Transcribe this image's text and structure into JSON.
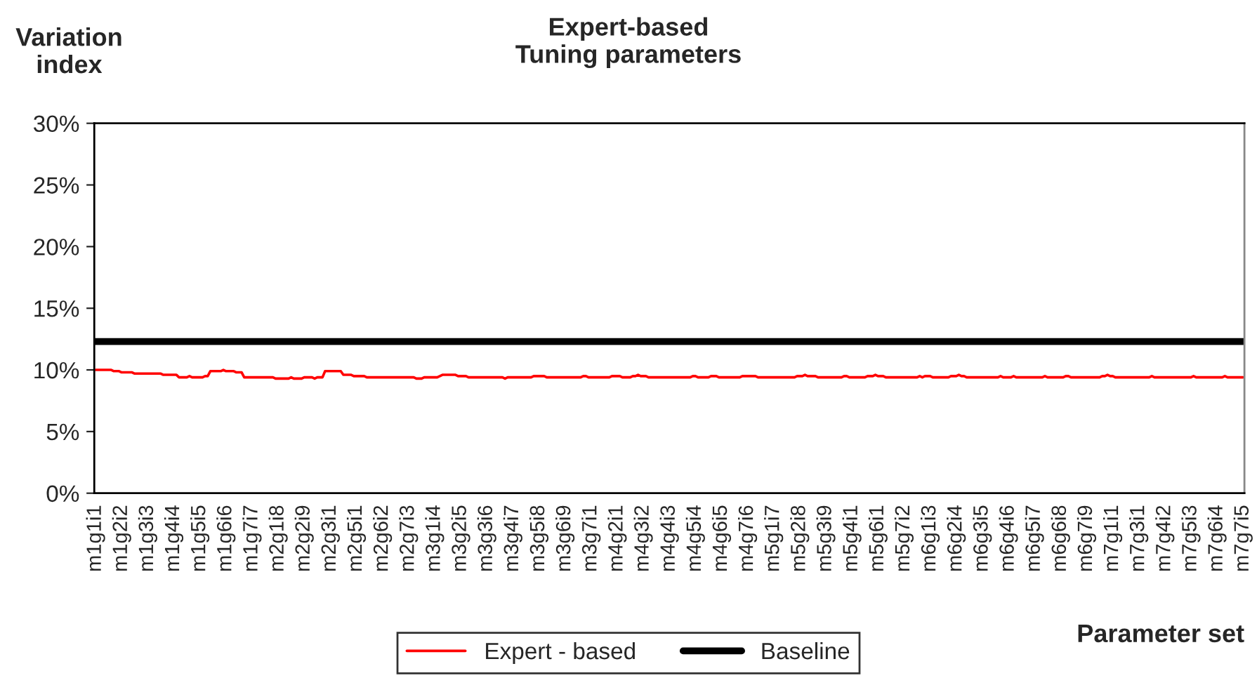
{
  "chart_data": {
    "type": "line",
    "title": "Expert-based\nTuning parameters",
    "xlabel": "Parameter set",
    "ylabel": "Variation index",
    "categories": [
      "m1g1i1",
      null,
      null,
      null,
      null,
      null,
      null,
      null,
      null,
      null,
      "m1g2i2",
      null,
      null,
      null,
      null,
      null,
      null,
      null,
      null,
      null,
      "m1g3i3",
      null,
      null,
      null,
      null,
      null,
      null,
      null,
      null,
      null,
      "m1g4i4",
      null,
      null,
      null,
      null,
      null,
      null,
      null,
      null,
      null,
      "m1g5i5",
      null,
      null,
      null,
      null,
      null,
      null,
      null,
      null,
      null,
      "m1g6i6",
      null,
      null,
      null,
      null,
      null,
      null,
      null,
      null,
      null,
      "m1g7i7",
      null,
      null,
      null,
      null,
      null,
      null,
      null,
      null,
      null,
      "m2g1i8",
      null,
      null,
      null,
      null,
      null,
      null,
      null,
      null,
      null,
      "m2g2i9",
      null,
      null,
      null,
      null,
      null,
      null,
      null,
      null,
      null,
      "m2g3i1",
      null,
      null,
      null,
      null,
      null,
      null,
      null,
      null,
      null,
      "m2g5i1",
      null,
      null,
      null,
      null,
      null,
      null,
      null,
      null,
      null,
      "m2g6i2",
      null,
      null,
      null,
      null,
      null,
      null,
      null,
      null,
      null,
      "m2g7i3",
      null,
      null,
      null,
      null,
      null,
      null,
      null,
      null,
      null,
      "m3g1i4",
      null,
      null,
      null,
      null,
      null,
      null,
      null,
      null,
      null,
      "m3g2i5",
      null,
      null,
      null,
      null,
      null,
      null,
      null,
      null,
      null,
      "m3g3i6",
      null,
      null,
      null,
      null,
      null,
      null,
      null,
      null,
      null,
      "m3g4i7",
      null,
      null,
      null,
      null,
      null,
      null,
      null,
      null,
      null,
      "m3g5i8",
      null,
      null,
      null,
      null,
      null,
      null,
      null,
      null,
      null,
      "m3g6i9",
      null,
      null,
      null,
      null,
      null,
      null,
      null,
      null,
      null,
      "m3g7i1",
      null,
      null,
      null,
      null,
      null,
      null,
      null,
      null,
      null,
      "m4g2i1",
      null,
      null,
      null,
      null,
      null,
      null,
      null,
      null,
      null,
      "m4g3i2",
      null,
      null,
      null,
      null,
      null,
      null,
      null,
      null,
      null,
      "m4g4i3",
      null,
      null,
      null,
      null,
      null,
      null,
      null,
      null,
      null,
      "m4g5i4",
      null,
      null,
      null,
      null,
      null,
      null,
      null,
      null,
      null,
      "m4g6i5",
      null,
      null,
      null,
      null,
      null,
      null,
      null,
      null,
      null,
      "m4g7i6",
      null,
      null,
      null,
      null,
      null,
      null,
      null,
      null,
      null,
      "m5g1i7",
      null,
      null,
      null,
      null,
      null,
      null,
      null,
      null,
      null,
      "m5g2i8",
      null,
      null,
      null,
      null,
      null,
      null,
      null,
      null,
      null,
      "m5g3i9",
      null,
      null,
      null,
      null,
      null,
      null,
      null,
      null,
      null,
      "m5g4i1",
      null,
      null,
      null,
      null,
      null,
      null,
      null,
      null,
      null,
      "m5g6i1",
      null,
      null,
      null,
      null,
      null,
      null,
      null,
      null,
      null,
      "m5g7i2",
      null,
      null,
      null,
      null,
      null,
      null,
      null,
      null,
      null,
      "m6g1i3",
      null,
      null,
      null,
      null,
      null,
      null,
      null,
      null,
      null,
      "m6g2i4",
      null,
      null,
      null,
      null,
      null,
      null,
      null,
      null,
      null,
      "m6g3i5",
      null,
      null,
      null,
      null,
      null,
      null,
      null,
      null,
      null,
      "m6g4i6",
      null,
      null,
      null,
      null,
      null,
      null,
      null,
      null,
      null,
      "m6g5i7",
      null,
      null,
      null,
      null,
      null,
      null,
      null,
      null,
      null,
      "m6g6i8",
      null,
      null,
      null,
      null,
      null,
      null,
      null,
      null,
      null,
      "m6g7i9",
      null,
      null,
      null,
      null,
      null,
      null,
      null,
      null,
      null,
      "m7g1i1",
      null,
      null,
      null,
      null,
      null,
      null,
      null,
      null,
      null,
      "m7g3i1",
      null,
      null,
      null,
      null,
      null,
      null,
      null,
      null,
      null,
      "m7g4i2",
      null,
      null,
      null,
      null,
      null,
      null,
      null,
      null,
      null,
      "m7g5i3",
      null,
      null,
      null,
      null,
      null,
      null,
      null,
      null,
      null,
      "m7g6i4",
      null,
      null,
      null,
      null,
      null,
      null,
      null,
      null,
      null,
      "m7g7i5"
    ],
    "series": [
      {
        "name": "Expert - based",
        "color": "#ff0000",
        "values": [
          10.0,
          10.0,
          10.0,
          10.0,
          10.0,
          10.0,
          10.0,
          9.9,
          9.9,
          9.9,
          9.8,
          9.8,
          9.8,
          9.8,
          9.8,
          9.7,
          9.7,
          9.7,
          9.7,
          9.7,
          9.7,
          9.7,
          9.7,
          9.7,
          9.7,
          9.7,
          9.6,
          9.6,
          9.6,
          9.6,
          9.6,
          9.6,
          9.4,
          9.4,
          9.4,
          9.4,
          9.5,
          9.4,
          9.4,
          9.4,
          9.4,
          9.4,
          9.5,
          9.5,
          9.9,
          9.9,
          9.9,
          9.9,
          9.9,
          10.0,
          9.9,
          9.9,
          9.9,
          9.9,
          9.8,
          9.8,
          9.8,
          9.4,
          9.4,
          9.4,
          9.4,
          9.4,
          9.4,
          9.4,
          9.4,
          9.4,
          9.4,
          9.4,
          9.4,
          9.3,
          9.3,
          9.3,
          9.3,
          9.3,
          9.3,
          9.4,
          9.3,
          9.3,
          9.3,
          9.3,
          9.4,
          9.4,
          9.4,
          9.4,
          9.3,
          9.4,
          9.4,
          9.4,
          9.9,
          9.9,
          9.9,
          9.9,
          9.9,
          9.9,
          9.9,
          9.6,
          9.6,
          9.6,
          9.6,
          9.5,
          9.5,
          9.5,
          9.5,
          9.5,
          9.4,
          9.4,
          9.4,
          9.4,
          9.4,
          9.4,
          9.4,
          9.4,
          9.4,
          9.4,
          9.4,
          9.4,
          9.4,
          9.4,
          9.4,
          9.4,
          9.4,
          9.4,
          9.4,
          9.3,
          9.3,
          9.3,
          9.4,
          9.4,
          9.4,
          9.4,
          9.4,
          9.4,
          9.5,
          9.6,
          9.6,
          9.6,
          9.6,
          9.6,
          9.6,
          9.5,
          9.5,
          9.5,
          9.5,
          9.4,
          9.4,
          9.4,
          9.4,
          9.4,
          9.4,
          9.4,
          9.4,
          9.4,
          9.4,
          9.4,
          9.4,
          9.4,
          9.4,
          9.3,
          9.4,
          9.4,
          9.4,
          9.4,
          9.4,
          9.4,
          9.4,
          9.4,
          9.4,
          9.4,
          9.5,
          9.5,
          9.5,
          9.5,
          9.5,
          9.4,
          9.4,
          9.4,
          9.4,
          9.4,
          9.4,
          9.4,
          9.4,
          9.4,
          9.4,
          9.4,
          9.4,
          9.4,
          9.4,
          9.5,
          9.5,
          9.4,
          9.4,
          9.4,
          9.4,
          9.4,
          9.4,
          9.4,
          9.4,
          9.4,
          9.5,
          9.5,
          9.5,
          9.5,
          9.4,
          9.4,
          9.4,
          9.4,
          9.5,
          9.5,
          9.6,
          9.5,
          9.5,
          9.5,
          9.4,
          9.4,
          9.4,
          9.4,
          9.4,
          9.4,
          9.4,
          9.4,
          9.4,
          9.4,
          9.4,
          9.4,
          9.4,
          9.4,
          9.4,
          9.4,
          9.4,
          9.5,
          9.5,
          9.4,
          9.4,
          9.4,
          9.4,
          9.4,
          9.5,
          9.5,
          9.5,
          9.4,
          9.4,
          9.4,
          9.4,
          9.4,
          9.4,
          9.4,
          9.4,
          9.4,
          9.5,
          9.5,
          9.5,
          9.5,
          9.5,
          9.5,
          9.4,
          9.4,
          9.4,
          9.4,
          9.4,
          9.4,
          9.4,
          9.4,
          9.4,
          9.4,
          9.4,
          9.4,
          9.4,
          9.4,
          9.4,
          9.5,
          9.5,
          9.5,
          9.6,
          9.5,
          9.5,
          9.5,
          9.5,
          9.4,
          9.4,
          9.4,
          9.4,
          9.4,
          9.4,
          9.4,
          9.4,
          9.4,
          9.4,
          9.5,
          9.5,
          9.4,
          9.4,
          9.4,
          9.4,
          9.4,
          9.4,
          9.4,
          9.5,
          9.5,
          9.5,
          9.6,
          9.5,
          9.5,
          9.5,
          9.4,
          9.4,
          9.4,
          9.4,
          9.4,
          9.4,
          9.4,
          9.4,
          9.4,
          9.4,
          9.4,
          9.4,
          9.4,
          9.5,
          9.4,
          9.5,
          9.5,
          9.5,
          9.4,
          9.4,
          9.4,
          9.4,
          9.4,
          9.4,
          9.4,
          9.5,
          9.5,
          9.5,
          9.6,
          9.5,
          9.5,
          9.4,
          9.4,
          9.4,
          9.4,
          9.4,
          9.4,
          9.4,
          9.4,
          9.4,
          9.4,
          9.4,
          9.4,
          9.4,
          9.5,
          9.4,
          9.4,
          9.4,
          9.4,
          9.5,
          9.4,
          9.4,
          9.4,
          9.4,
          9.4,
          9.4,
          9.4,
          9.4,
          9.4,
          9.4,
          9.4,
          9.5,
          9.4,
          9.4,
          9.4,
          9.4,
          9.4,
          9.4,
          9.4,
          9.5,
          9.5,
          9.4,
          9.4,
          9.4,
          9.4,
          9.4,
          9.4,
          9.4,
          9.4,
          9.4,
          9.4,
          9.4,
          9.4,
          9.5,
          9.5,
          9.6,
          9.5,
          9.5,
          9.4,
          9.4,
          9.4,
          9.4,
          9.4,
          9.4,
          9.4,
          9.4,
          9.4,
          9.4,
          9.4,
          9.4,
          9.4,
          9.4,
          9.5,
          9.4,
          9.4,
          9.4,
          9.4,
          9.4,
          9.4,
          9.4,
          9.4,
          9.4,
          9.4,
          9.4,
          9.4,
          9.4,
          9.4,
          9.4,
          9.5,
          9.4,
          9.4,
          9.4,
          9.4,
          9.4,
          9.4,
          9.4,
          9.4,
          9.4,
          9.4,
          9.4,
          9.5,
          9.4,
          9.4,
          9.4,
          9.4,
          9.4,
          9.4,
          9.4
        ]
      }
    ],
    "ref_lines": [
      {
        "axis": "y",
        "value": 12.3,
        "label": "Baseline",
        "color": "#000000"
      }
    ],
    "ylim": [
      0,
      30
    ],
    "yticks": [
      {
        "value": 0,
        "label": "0%"
      },
      {
        "value": 5,
        "label": "5%"
      },
      {
        "value": 10,
        "label": "10%"
      },
      {
        "value": 15,
        "label": "15%"
      },
      {
        "value": 20,
        "label": "20%"
      },
      {
        "value": 25,
        "label": "25%"
      },
      {
        "value": 30,
        "label": "30%"
      }
    ],
    "legend": "bottom",
    "marker": "none",
    "line_style": "solid",
    "grid": false
  }
}
